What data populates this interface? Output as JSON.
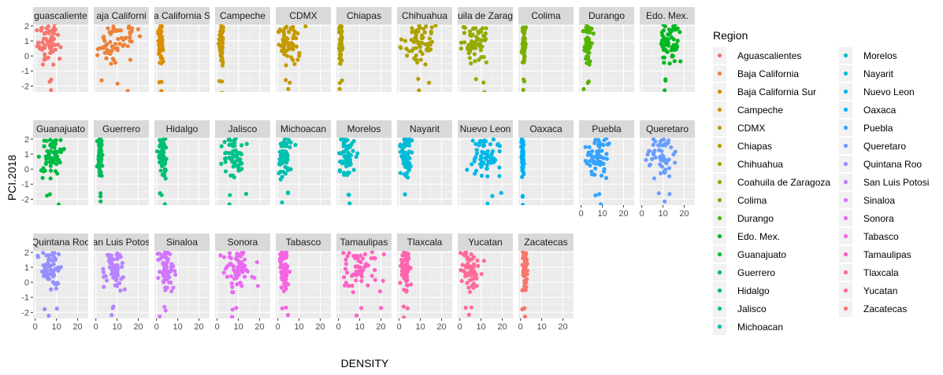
{
  "chart_data": {
    "type": "scatter",
    "xlabel": "DENSITY",
    "ylabel": "PCI.2018",
    "xlim": [
      -1,
      25
    ],
    "ylim": [
      -2.4,
      2.1
    ],
    "x_ticks": [
      "0",
      "10",
      "20"
    ],
    "x_tick_values": [
      0,
      10,
      20
    ],
    "y_ticks": [
      "2",
      "1",
      "0",
      "-1",
      "-2"
    ],
    "y_tick_values": [
      2,
      1,
      0,
      -1,
      -2
    ],
    "grid": true,
    "facet_layout": "wrap",
    "legend": {
      "title": "Region",
      "placement": "right",
      "columns": 2
    },
    "series": [
      {
        "name": "Aguascalientes",
        "label": "guascaliente",
        "color": "#F8766D",
        "center": 6,
        "spread": 2.5
      },
      {
        "name": "Baja California",
        "label": "aja Californi",
        "color": "#EC8239",
        "center": 9,
        "spread": 5
      },
      {
        "name": "Baja California Sur",
        "label": "a California S",
        "color": "#DB8E00",
        "center": 2,
        "spread": 0.6
      },
      {
        "name": "Campeche",
        "label": "Campeche",
        "color": "#C79800",
        "center": 2,
        "spread": 0.5
      },
      {
        "name": "CDMX",
        "label": "CDMX",
        "color": "#C49A00",
        "center": 5,
        "spread": 2.5
      },
      {
        "name": "Chiapas",
        "label": "Chiapas",
        "color": "#B3A000",
        "center": 1,
        "spread": 0.4
      },
      {
        "name": "Chihuahua",
        "label": "Chihuahua",
        "color": "#AEA200",
        "center": 10,
        "spread": 4.5
      },
      {
        "name": "Coahuila de Zaragoza",
        "label": "uila de Zarag",
        "color": "#94AA00",
        "center": 7,
        "spread": 3.5
      },
      {
        "name": "Colima",
        "label": "Colima",
        "color": "#7AAF00",
        "center": 1.5,
        "spread": 0.4
      },
      {
        "name": "Durango",
        "label": "Durango",
        "color": "#53B400",
        "center": 3,
        "spread": 1
      },
      {
        "name": "Edo. Mex.",
        "label": "Edo. Mex.",
        "color": "#00B81F",
        "center": 13,
        "spread": 2.5
      },
      {
        "name": "Guanajuato",
        "label": "Guanajuato",
        "color": "#00BA42",
        "center": 8,
        "spread": 3
      },
      {
        "name": "Guerrero",
        "label": "Guerrero",
        "color": "#00BC59",
        "center": 2,
        "spread": 0.5
      },
      {
        "name": "Hidalgo",
        "label": "Hidalgo",
        "color": "#00BE70",
        "center": 3,
        "spread": 1.2
      },
      {
        "name": "Jalisco",
        "label": "Jalisco",
        "color": "#00C08B",
        "center": 8,
        "spread": 2.5
      },
      {
        "name": "Michoacan",
        "label": "Michoacan",
        "color": "#00C0AF",
        "center": 3,
        "spread": 1.5
      },
      {
        "name": "Morelos",
        "label": "Morelos",
        "color": "#00BFC4",
        "center": 4,
        "spread": 2
      },
      {
        "name": "Nayarit",
        "label": "Nayarit",
        "color": "#00BCD8",
        "center": 3,
        "spread": 1.2
      },
      {
        "name": "Nuevo Leon",
        "label": "Nuevo Leon",
        "color": "#00B8E7",
        "center": 12,
        "spread": 4
      },
      {
        "name": "Oaxaca",
        "label": "Oaxaca",
        "color": "#00B0F6",
        "center": 1,
        "spread": 0.3
      },
      {
        "name": "Puebla",
        "label": "Puebla",
        "color": "#35A2FF",
        "center": 8,
        "spread": 2.5
      },
      {
        "name": "Queretaro",
        "label": "Queretaro",
        "color": "#6B9DFF",
        "center": 10,
        "spread": 3
      },
      {
        "name": "Quintana Roo",
        "label": "Quintana Roo",
        "color": "#9590FF",
        "center": 7,
        "spread": 2.5
      },
      {
        "name": "San Luis Potosi",
        "label": "an Luis Potos",
        "color": "#B983FF",
        "center": 8,
        "spread": 2.5
      },
      {
        "name": "Sinaloa",
        "label": "Sinaloa",
        "color": "#D177FF",
        "center": 4,
        "spread": 1.8
      },
      {
        "name": "Sonora",
        "label": "Sonora",
        "color": "#E76BF3",
        "center": 10,
        "spread": 4
      },
      {
        "name": "Tabasco",
        "label": "Tabasco",
        "color": "#F564E3",
        "center": 3,
        "spread": 1
      },
      {
        "name": "Tamaulipas",
        "label": "Tamaulipas",
        "color": "#FF61C3",
        "center": 10,
        "spread": 4
      },
      {
        "name": "Tlaxcala",
        "label": "Tlaxcala",
        "color": "#FF65AE",
        "center": 3,
        "spread": 1
      },
      {
        "name": "Yucatan",
        "label": "Yucatan",
        "color": "#FF6A98",
        "center": 5,
        "spread": 2.5
      },
      {
        "name": "Zacatecas",
        "label": "Zacatecas",
        "color": "#F8766D",
        "center": 2,
        "spread": 0.8
      }
    ]
  }
}
